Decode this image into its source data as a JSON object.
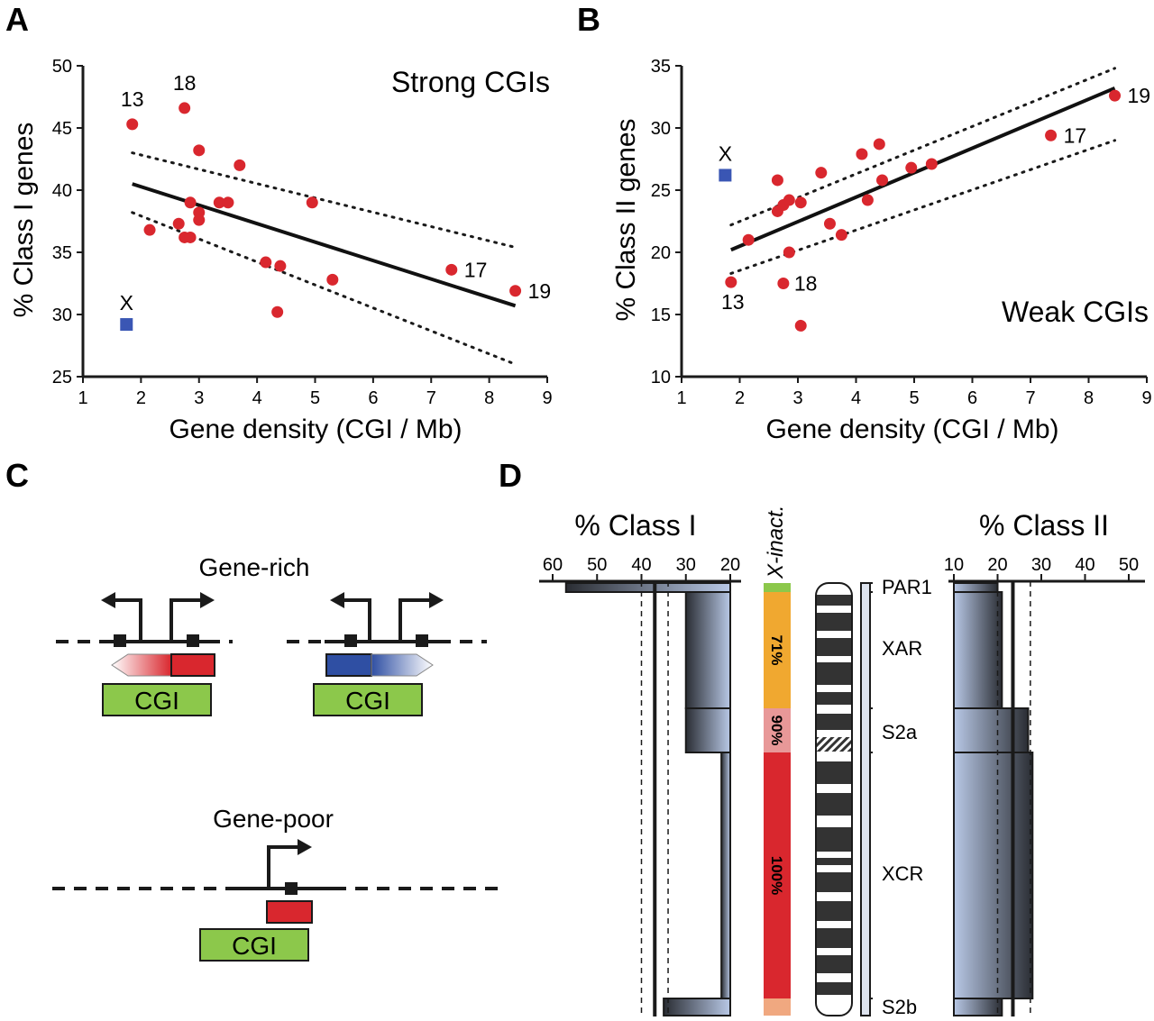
{
  "panels": {
    "A": "A",
    "B": "B",
    "C": "C",
    "D": "D"
  },
  "chart_data": [
    {
      "type": "scatter",
      "panel": "A",
      "title": "Strong CGIs",
      "xlabel": "Gene density (CGI / Mb)",
      "ylabel": "% Class I genes",
      "xlim": [
        1,
        9
      ],
      "ylim": [
        25,
        50
      ],
      "xticks": [
        "1",
        "2",
        "3",
        "4",
        "5",
        "6",
        "7",
        "8",
        "9"
      ],
      "yticks": [
        "25",
        "30",
        "35",
        "40",
        "45",
        "50"
      ],
      "points": [
        {
          "x": 1.85,
          "y": 45.3,
          "label": "13"
        },
        {
          "x": 2.75,
          "y": 46.6,
          "label": "18"
        },
        {
          "x": 3.0,
          "y": 43.2,
          "label": ""
        },
        {
          "x": 3.7,
          "y": 42.0,
          "label": ""
        },
        {
          "x": 4.95,
          "y": 39.0,
          "label": ""
        },
        {
          "x": 2.85,
          "y": 39.0,
          "label": ""
        },
        {
          "x": 3.35,
          "y": 39.0,
          "label": ""
        },
        {
          "x": 3.5,
          "y": 39.0,
          "label": ""
        },
        {
          "x": 3.0,
          "y": 38.2,
          "label": ""
        },
        {
          "x": 3.0,
          "y": 37.6,
          "label": ""
        },
        {
          "x": 2.65,
          "y": 37.3,
          "label": ""
        },
        {
          "x": 2.15,
          "y": 36.8,
          "label": ""
        },
        {
          "x": 2.75,
          "y": 36.2,
          "label": ""
        },
        {
          "x": 2.85,
          "y": 36.2,
          "label": ""
        },
        {
          "x": 4.15,
          "y": 34.2,
          "label": ""
        },
        {
          "x": 4.4,
          "y": 33.9,
          "label": ""
        },
        {
          "x": 5.3,
          "y": 32.8,
          "label": ""
        },
        {
          "x": 4.35,
          "y": 30.2,
          "label": ""
        },
        {
          "x": 7.35,
          "y": 33.6,
          "label": "17"
        },
        {
          "x": 8.45,
          "y": 31.9,
          "label": "19"
        }
      ],
      "outlier": {
        "x": 1.75,
        "y": 29.2,
        "label": "X"
      },
      "fit": {
        "x1": 1.85,
        "y1": 40.5,
        "x2": 8.45,
        "y2": 30.7
      },
      "ci_upper": {
        "x1": 1.85,
        "y1": 43.0,
        "x2": 8.45,
        "y2": 35.4
      },
      "ci_lower": {
        "x1": 1.85,
        "y1": 38.2,
        "x2": 8.45,
        "y2": 26.0
      }
    },
    {
      "type": "scatter",
      "panel": "B",
      "title": "Weak CGIs",
      "xlabel": "Gene density (CGI / Mb)",
      "ylabel": "% Class II genes",
      "xlim": [
        1,
        9
      ],
      "ylim": [
        10,
        35
      ],
      "xticks": [
        "1",
        "2",
        "3",
        "4",
        "5",
        "6",
        "7",
        "8",
        "9"
      ],
      "yticks": [
        "10",
        "15",
        "20",
        "25",
        "30",
        "35"
      ],
      "points": [
        {
          "x": 1.85,
          "y": 17.6,
          "label": "13"
        },
        {
          "x": 2.75,
          "y": 17.5,
          "label": "18"
        },
        {
          "x": 3.05,
          "y": 14.1,
          "label": ""
        },
        {
          "x": 2.15,
          "y": 21.0,
          "label": ""
        },
        {
          "x": 2.85,
          "y": 20.0,
          "label": ""
        },
        {
          "x": 2.65,
          "y": 23.3,
          "label": ""
        },
        {
          "x": 2.75,
          "y": 23.8,
          "label": ""
        },
        {
          "x": 2.85,
          "y": 24.2,
          "label": ""
        },
        {
          "x": 3.05,
          "y": 24.0,
          "label": ""
        },
        {
          "x": 2.65,
          "y": 25.8,
          "label": ""
        },
        {
          "x": 3.4,
          "y": 26.4,
          "label": ""
        },
        {
          "x": 3.55,
          "y": 22.3,
          "label": ""
        },
        {
          "x": 3.75,
          "y": 21.4,
          "label": ""
        },
        {
          "x": 4.1,
          "y": 27.9,
          "label": ""
        },
        {
          "x": 4.2,
          "y": 24.2,
          "label": ""
        },
        {
          "x": 4.4,
          "y": 28.7,
          "label": ""
        },
        {
          "x": 4.45,
          "y": 25.8,
          "label": ""
        },
        {
          "x": 4.95,
          "y": 26.8,
          "label": ""
        },
        {
          "x": 5.3,
          "y": 27.1,
          "label": ""
        },
        {
          "x": 7.35,
          "y": 29.4,
          "label": "17"
        },
        {
          "x": 8.45,
          "y": 32.6,
          "label": "19"
        }
      ],
      "outlier": {
        "x": 1.75,
        "y": 26.2,
        "label": "X"
      },
      "fit": {
        "x1": 1.85,
        "y1": 20.2,
        "x2": 8.45,
        "y2": 33.2
      },
      "ci_upper": {
        "x1": 1.85,
        "y1": 22.2,
        "x2": 8.45,
        "y2": 34.8
      },
      "ci_lower": {
        "x1": 1.85,
        "y1": 18.3,
        "x2": 8.45,
        "y2": 29.0
      }
    }
  ],
  "diagram_c": {
    "gene_rich_label": "Gene-rich",
    "gene_poor_label": "Gene-poor",
    "cgi_label": "CGI",
    "colors": {
      "cgi": "#8cc84b",
      "red_exon": "#d9272e",
      "blue_exon": "#2f4fa3"
    }
  },
  "diagram_d": {
    "class1_title": "% Class I",
    "class2_title": "% Class II",
    "xinact_label": "X-inact.",
    "class1_ticks": [
      "60",
      "50",
      "40",
      "30",
      "20"
    ],
    "class2_ticks": [
      "10",
      "20",
      "30",
      "40",
      "50"
    ],
    "regions": [
      {
        "name": "PAR1",
        "class1": 57,
        "class2": 20,
        "xinact_pct": "",
        "color": "#8cc84b"
      },
      {
        "name": "XAR",
        "class1": 30,
        "class2": 21,
        "xinact_pct": "71%",
        "color": "#f0a830"
      },
      {
        "name": "S2a",
        "class1": 30,
        "class2": 27,
        "xinact_pct": "90%",
        "color": "#e89898"
      },
      {
        "name": "XCR",
        "class1": 22,
        "class2": 28,
        "xinact_pct": "100%",
        "color": "#d9272e"
      },
      {
        "name": "S2b",
        "class1": 35,
        "class2": 21,
        "xinact_pct": "",
        "color": "#f0a880"
      }
    ]
  }
}
